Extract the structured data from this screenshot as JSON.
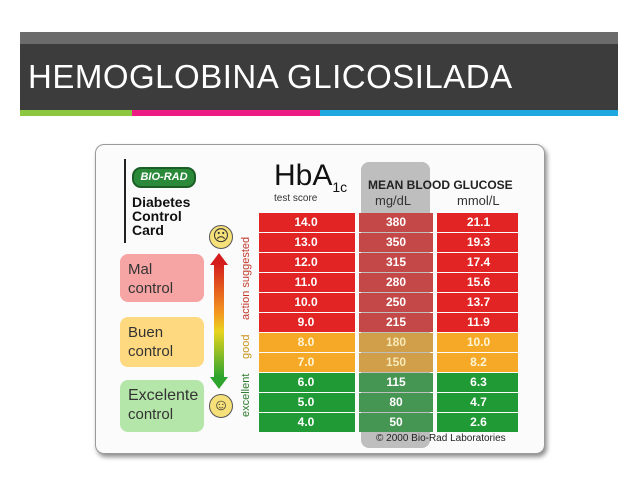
{
  "slide": {
    "title": "HEMOGLOBINA GLICOSILADA",
    "colors": {
      "banner": "#3c3c3c",
      "accent_green": "#8dc63f",
      "accent_pink": "#ec1c84",
      "accent_blue": "#1fa8e0"
    }
  },
  "card": {
    "logo": "BIO-RAD",
    "title_lines": [
      "Diabetes",
      "Control",
      "Card"
    ],
    "statuses": {
      "mal": [
        "Mal",
        "control"
      ],
      "buen": [
        "Buen",
        "control"
      ],
      "excelente": [
        "Excelente",
        "control"
      ]
    },
    "face_icons": {
      "top": "sad-face-icon",
      "bottom": "happy-face-icon"
    },
    "side_labels": {
      "action": "action suggested",
      "good": "good",
      "excellent": "excellent"
    },
    "header": {
      "hba_main": "HbA",
      "hba_sub": "1c",
      "test_score": "test score",
      "mean_blood_glucose": "MEAN BLOOD GLUCOSE",
      "unit_mg": "mg/dL",
      "unit_mmol": "mmol/L"
    },
    "rows": [
      {
        "hba1c": "14.0",
        "mg_dl": "380",
        "mmol_l": "21.1",
        "zone": "action"
      },
      {
        "hba1c": "13.0",
        "mg_dl": "350",
        "mmol_l": "19.3",
        "zone": "action"
      },
      {
        "hba1c": "12.0",
        "mg_dl": "315",
        "mmol_l": "17.4",
        "zone": "action"
      },
      {
        "hba1c": "11.0",
        "mg_dl": "280",
        "mmol_l": "15.6",
        "zone": "action"
      },
      {
        "hba1c": "10.0",
        "mg_dl": "250",
        "mmol_l": "13.7",
        "zone": "action"
      },
      {
        "hba1c": "9.0",
        "mg_dl": "215",
        "mmol_l": "11.9",
        "zone": "action"
      },
      {
        "hba1c": "8.0",
        "mg_dl": "180",
        "mmol_l": "10.0",
        "zone": "good"
      },
      {
        "hba1c": "7.0",
        "mg_dl": "150",
        "mmol_l": "8.2",
        "zone": "good"
      },
      {
        "hba1c": "6.0",
        "mg_dl": "115",
        "mmol_l": "6.3",
        "zone": "excellent"
      },
      {
        "hba1c": "5.0",
        "mg_dl": "80",
        "mmol_l": "4.7",
        "zone": "excellent"
      },
      {
        "hba1c": "4.0",
        "mg_dl": "50",
        "mmol_l": "2.6",
        "zone": "excellent"
      }
    ],
    "copyright": "© 2000 Bio-Rad Laboratories",
    "zone_colors": {
      "action": "#e32424",
      "good": "#f6a926",
      "excellent": "#1f9a35"
    }
  }
}
